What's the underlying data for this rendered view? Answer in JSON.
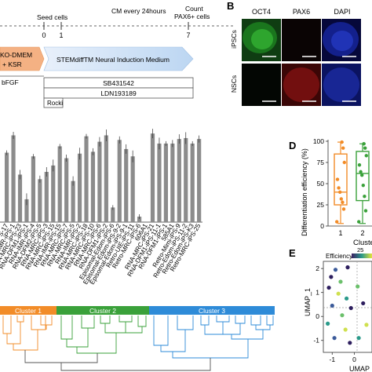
{
  "panel_labels": [
    "B",
    "D",
    "E"
  ],
  "timeline": {
    "day_labels": [
      "0",
      "1",
      "7"
    ],
    "event_top_left": "Seed cells",
    "event_top_mid": "CM every 24hours",
    "event_top_right_1": "Count",
    "event_top_right_2": "PAX6+ cells",
    "medium_left_1": "KO-DMEM",
    "medium_left_2": "+ KSR",
    "medium_main": "STEMdiffTM Neural Induction Medium",
    "factor_bfgf": "bFGF",
    "factor_sb": "SB431542",
    "factor_ldn": "LDN193189",
    "factor_rocki": "Rocki"
  },
  "micrograph": {
    "columns": [
      "OCT4",
      "PAX6",
      "DAPI"
    ],
    "rows": [
      "iPSCs",
      "NSCs"
    ]
  },
  "bar_chart": {
    "type": "bar",
    "categories": [
      "RNA-IMR-iPS-17",
      "RNA-IMR-iPS-1",
      "RNA-MRC-iPS-23",
      "RNA-DFM1-iPS-1",
      "RNA-IMR-iPS-4",
      "RNA-DFM2-iPS-5",
      "RNA-MRC-iPS-3",
      "RNA-MRC-iPS-15",
      "RNA-IMR-iPS-15",
      "RNA-MRC-iPS-7",
      "RNA-MRC-iPS-5",
      "RNA-IMR-iPS-2",
      "RNA-MRC-iPS-18",
      "RNA-MRC-iPS-10",
      "RNA-MRC-iPS-6",
      "RNA-DFM1-iPS-2",
      "Episomal-Edom-iPS-6",
      "Episomal-Edom-iPS-9-2",
      "Episomal-Edom-iPS-9-1",
      "Retro-UIE-iPS-11",
      "Retro-MRC-iPS-6",
      "606A1",
      "RNA-MRC-iPS-21",
      "RNA-DFM1-iPS-11-1",
      "RNA-DFM1-iPS-1",
      "585A1",
      "Retro-Mimi-iPS-9",
      "Retro-Edom-iPS-11-2",
      "Retro-Edom-iPS-K3",
      "Retro-MRC-iPS-25"
    ],
    "values": [
      0.76,
      0.95,
      0.52,
      0.25,
      0.72,
      0.47,
      0.55,
      0.62,
      0.83,
      0.7,
      0.45,
      0.75,
      0.94,
      0.77,
      0.88,
      0.95,
      0.16,
      0.9,
      0.8,
      0.72,
      0.06,
      0.0,
      0.97,
      0.86,
      0.86,
      0.86,
      0.91,
      0.92,
      0.86,
      0.91
    ],
    "ylim": [
      0,
      1.1
    ]
  },
  "dendrogram": {
    "clusters": [
      "Cluster 1",
      "Cluster 2",
      "Cluster 3"
    ],
    "colors": [
      "#f28c28",
      "#3aa13a",
      "#2e8bd8"
    ]
  },
  "box_plot": {
    "type": "box",
    "ylabel": "Differentiation efficiency (%)",
    "yticks": [
      "0",
      "25",
      "50",
      "75",
      "100"
    ],
    "ylim": [
      0,
      100
    ],
    "categories": [
      "1",
      "2"
    ],
    "xlabel": "Clusters",
    "boxes": [
      {
        "name": "1",
        "color": "#f28c28",
        "min": 3,
        "q1": 25,
        "median": 40,
        "q3": 85,
        "max": 99,
        "points": [
          5,
          20,
          28,
          32,
          40,
          45,
          55,
          75,
          92,
          99
        ]
      },
      {
        "name": "2",
        "color": "#3aa13a",
        "min": 3,
        "q1": 30,
        "median": 62,
        "q3": 88,
        "max": 97,
        "points": [
          5,
          18,
          35,
          48,
          60,
          64,
          72,
          83,
          92,
          97
        ]
      }
    ]
  },
  "umap": {
    "type": "scatter",
    "ylabel": "UMAP_1",
    "xlabel": "UMAP_2",
    "legend_title": "Efficiency",
    "legend_value": "25",
    "xticks": [
      "-1",
      "0"
    ],
    "yticks": [
      "2",
      "1",
      "0",
      "-1"
    ],
    "xlim": [
      -1.4,
      0.8
    ],
    "ylim": [
      -1.5,
      2.3
    ],
    "points": [
      {
        "x": -1.05,
        "y": 1.65,
        "c": "#2d1e5e"
      },
      {
        "x": -0.85,
        "y": 1.95,
        "c": "#3b5a9a"
      },
      {
        "x": -0.62,
        "y": 1.45,
        "c": "#6bc06b"
      },
      {
        "x": -0.3,
        "y": 2.05,
        "c": "#2d1e5e"
      },
      {
        "x": -1.15,
        "y": 1.2,
        "c": "#2d1e5e"
      },
      {
        "x": -0.72,
        "y": 0.95,
        "c": "#cfe04f"
      },
      {
        "x": -0.35,
        "y": 0.75,
        "c": "#2a9a8a"
      },
      {
        "x": -1.0,
        "y": 0.45,
        "c": "#3b5a9a"
      },
      {
        "x": -0.15,
        "y": 0.35,
        "c": "#2d1e5e"
      },
      {
        "x": -0.55,
        "y": 0.05,
        "c": "#6bc06b"
      },
      {
        "x": -1.2,
        "y": -0.3,
        "c": "#2a9a8a"
      },
      {
        "x": -0.4,
        "y": -0.55,
        "c": "#cfe04f"
      },
      {
        "x": -0.9,
        "y": -0.9,
        "c": "#3b5a9a"
      },
      {
        "x": -0.2,
        "y": -1.1,
        "c": "#2d1e5e"
      },
      {
        "x": 0.15,
        "y": 1.25,
        "c": "#6bc06b"
      },
      {
        "x": 0.4,
        "y": 0.55,
        "c": "#2d1e5e"
      },
      {
        "x": 0.55,
        "y": -0.35,
        "c": "#cfe04f"
      },
      {
        "x": 0.2,
        "y": -0.9,
        "c": "#2a9a8a"
      }
    ]
  }
}
